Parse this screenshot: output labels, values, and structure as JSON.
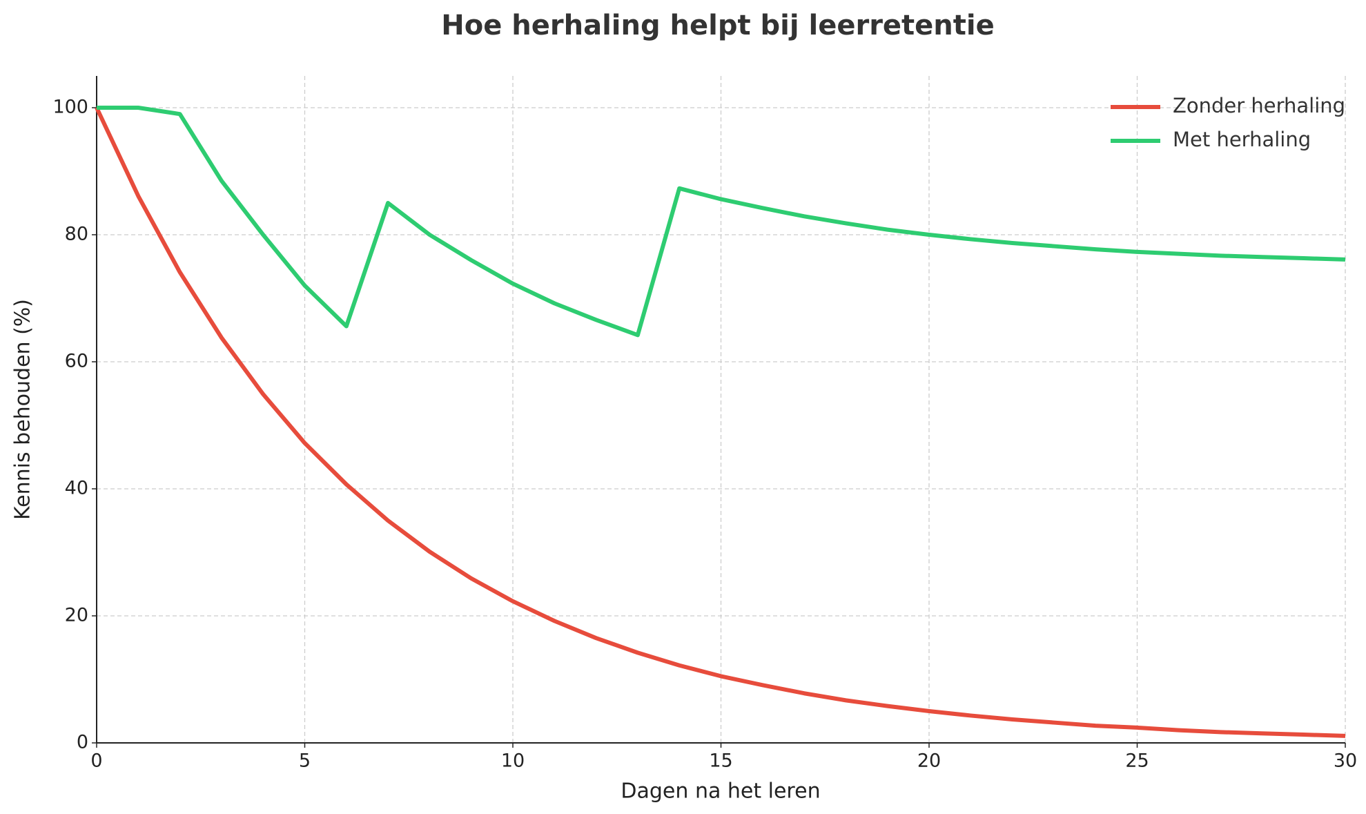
{
  "chart_data": {
    "type": "line",
    "title": "Hoe herhaling helpt bij leerretentie",
    "x_label": "Dagen na het leren",
    "y_label": "Kennis behouden (%)",
    "x": [
      0,
      1,
      2,
      3,
      4,
      5,
      6,
      7,
      8,
      9,
      10,
      11,
      12,
      13,
      14,
      15,
      16,
      17,
      18,
      19,
      20,
      21,
      22,
      23,
      24,
      25,
      26,
      27,
      28,
      29,
      30
    ],
    "series": [
      {
        "name": "Zonder herhaling",
        "color": "#e74c3c",
        "values": [
          100,
          86.1,
          74.1,
          63.8,
          54.9,
          47.2,
          40.7,
          35.0,
          30.1,
          25.9,
          22.3,
          19.2,
          16.5,
          14.2,
          12.2,
          10.5,
          9.1,
          7.8,
          6.7,
          5.8,
          5.0,
          4.3,
          3.7,
          3.2,
          2.7,
          2.4,
          2.0,
          1.7,
          1.5,
          1.3,
          1.1
        ]
      },
      {
        "name": "Met herhaling",
        "color": "#2ecc71",
        "values": [
          100,
          100,
          99,
          88.5,
          80,
          72,
          65.6,
          85,
          80,
          76,
          72.3,
          69.2,
          66.6,
          64.2,
          87.3,
          85.6,
          84.2,
          82.9,
          81.8,
          80.8,
          80.0,
          79.3,
          78.7,
          78.2,
          77.7,
          77.3,
          77.0,
          76.7,
          76.5,
          76.3,
          76.1
        ]
      }
    ],
    "xlim": [
      0,
      30
    ],
    "xticks": [
      0,
      5,
      10,
      15,
      20,
      25,
      30
    ],
    "ylim": [
      0,
      105
    ],
    "yticks": [
      0,
      20,
      40,
      60,
      80,
      100
    ],
    "grid": true,
    "legend": "upper right"
  }
}
